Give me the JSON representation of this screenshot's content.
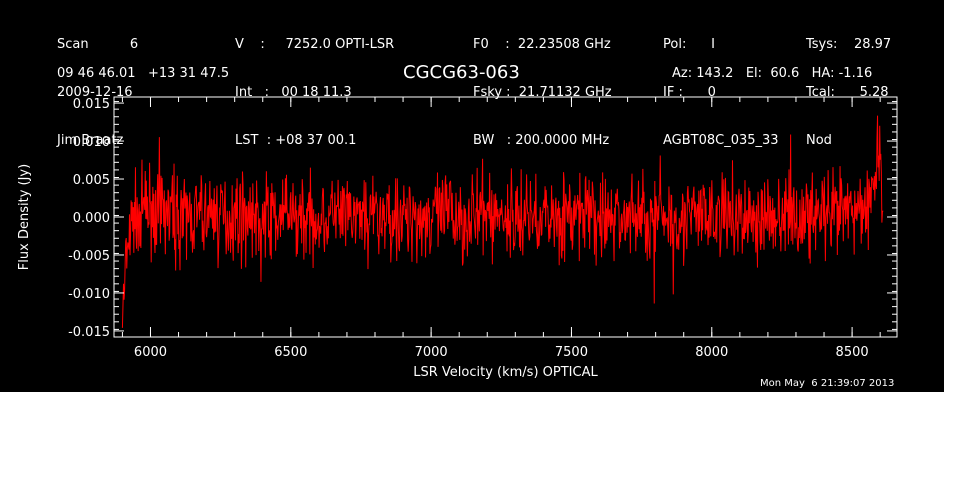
{
  "header": {
    "col1": [
      "Scan          6",
      "2009-12-16",
      "Jim Braatz"
    ],
    "col2": [
      "V    :     7252.0 OPTI-LSR",
      "Int   :   00 18 11.3",
      "LST  : +08 37 00.1"
    ],
    "col3": [
      "F0    :  22.23508 GHz",
      "Fsky :  21.71132 GHz",
      "BW   : 200.0000 MHz"
    ],
    "col4": [
      "Pol:      I",
      "IF :      0",
      "AGBT08C_035_33"
    ],
    "col5": [
      "Tsys:    28.97",
      "Tcal:      5.28",
      "Nod"
    ],
    "coords": "09 46 46.01   +13 31 47.5",
    "azel": "Az: 143.2   El:  60.6   HA: -1.16"
  },
  "timestamp": "Mon May  6 21:39:07 2013",
  "chart_data": {
    "type": "line",
    "title": "CGCG63-063",
    "xlabel": "LSR Velocity (km/s) OPTICAL",
    "ylabel": "Flux Density (Jy)",
    "xlim": [
      5870,
      8660
    ],
    "ylim": [
      -0.0158,
      0.0158
    ],
    "xticks": [
      6000,
      6500,
      7000,
      7500,
      8000,
      8500
    ],
    "xtick_labels": [
      "6000",
      "6500",
      "7000",
      "7500",
      "8000",
      "8500"
    ],
    "yticks": [
      -0.015,
      -0.01,
      -0.005,
      0.0,
      0.005,
      0.01,
      0.015
    ],
    "ytick_labels": [
      "-0.015",
      "-0.010",
      "-0.005",
      "0.000",
      "0.005",
      "0.010",
      "0.015"
    ],
    "series": [
      {
        "color": "#ff0000",
        "x": [
          5900,
          5905,
          5910,
          5915,
          5920,
          5930,
          5940,
          5960,
          5980,
          6000,
          6030,
          6060,
          6080,
          6100,
          6150,
          6200,
          6250,
          6300,
          6350,
          6400,
          6450,
          6500,
          6550,
          6600,
          6650,
          6700,
          6750,
          6800,
          6850,
          6900,
          6950,
          7000,
          7050,
          7100,
          7150,
          7200,
          7250,
          7300,
          7350,
          7400,
          7450,
          7500,
          7550,
          7600,
          7650,
          7700,
          7750,
          7800,
          7850,
          7900,
          7950,
          8000,
          8050,
          8100,
          8150,
          8200,
          8250,
          8300,
          8350,
          8400,
          8450,
          8500,
          8530,
          8550,
          8570,
          8580,
          8590,
          8600,
          8610
        ],
        "y": [
          -0.013,
          -0.011,
          -0.008,
          -0.006,
          -0.004,
          -0.002,
          0.0,
          0.0005,
          0.001,
          0.0008,
          0.0005,
          0.0004,
          0.0,
          0.0003,
          -0.0002,
          0.0002,
          0.0,
          0.0004,
          0.0001,
          -0.0003,
          0.0,
          0.0002,
          0.0,
          -0.0002,
          0.0003,
          0.0,
          -0.0001,
          0.0002,
          0.0,
          -0.0002,
          0.0001,
          0.0,
          0.0003,
          -0.0001,
          0.0,
          0.0002,
          0.0,
          -0.0002,
          0.0004,
          0.0,
          0.0001,
          -0.0001,
          0.0002,
          0.0,
          -0.0002,
          0.0001,
          -0.0003,
          0.0,
          0.0002,
          0.0,
          -0.0001,
          0.0002,
          0.0,
          0.0001,
          -0.0002,
          0.0,
          0.0002,
          0.0001,
          0.0,
          -0.0001,
          0.0002,
          0.0005,
          0.001,
          0.0015,
          0.003,
          0.005,
          0.008,
          0.007,
          0.004
        ]
      }
    ]
  }
}
